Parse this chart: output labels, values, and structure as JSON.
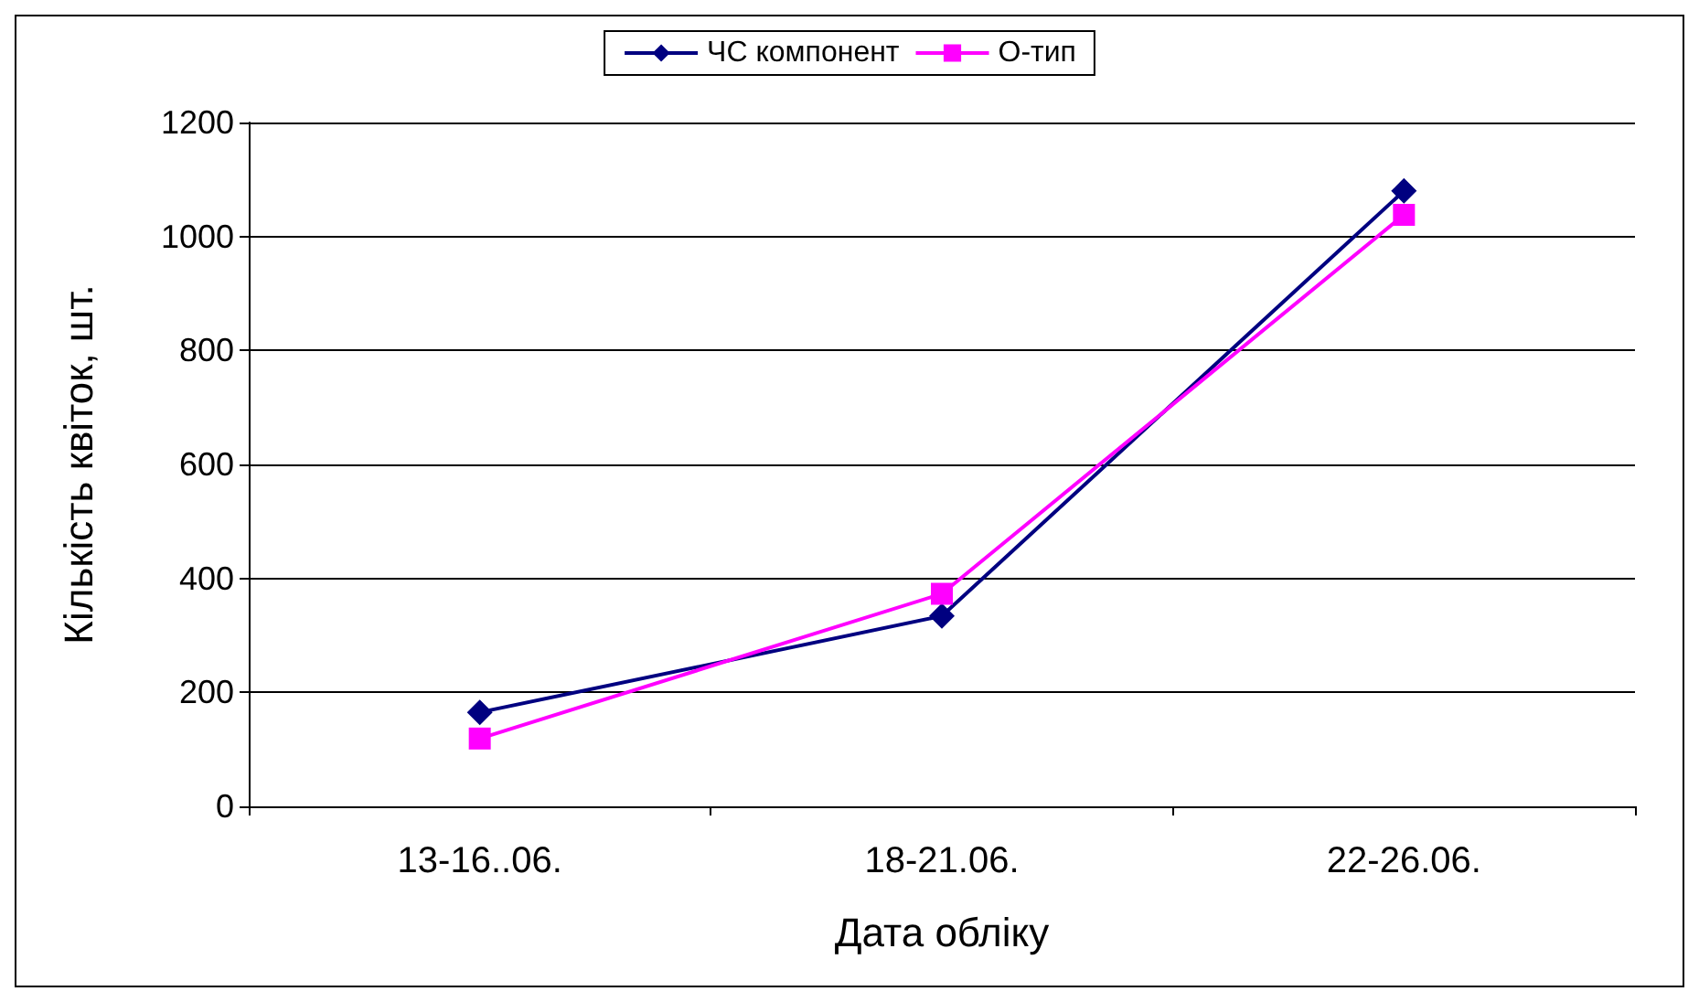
{
  "chart_data": {
    "type": "line",
    "xlabel": "Дата обліку",
    "ylabel": "Кількість квіток, шт.",
    "categories": [
      "13-16..06.",
      "18-21.06.",
      "22-26.06."
    ],
    "series": [
      {
        "name": "ЧС компонент",
        "color": "#000080",
        "marker": "diamond",
        "values": [
          165,
          334,
          1080
        ]
      },
      {
        "name": "О-тип",
        "color": "#ff00ff",
        "marker": "square",
        "values": [
          119,
          373,
          1038
        ]
      }
    ],
    "ylim": [
      0,
      1200
    ],
    "yticks": [
      0,
      200,
      400,
      600,
      800,
      1000,
      1200
    ],
    "grid": "y",
    "legend": "top",
    "line_style": "solid"
  }
}
